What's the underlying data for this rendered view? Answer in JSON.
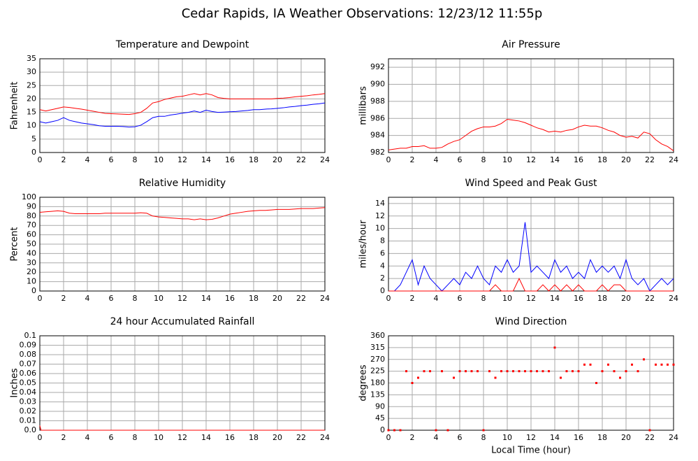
{
  "title": "Cedar Rapids, IA Weather Observations: 12/23/12 11:55p",
  "chart_data": [
    {
      "type": "line",
      "title": "Temperature and Dewpoint",
      "ylabel": "Fahrenheit",
      "xlim": [
        0,
        24
      ],
      "xticks": [
        0,
        2,
        4,
        6,
        8,
        10,
        12,
        14,
        16,
        18,
        20,
        22,
        24
      ],
      "ylim": [
        0,
        35
      ],
      "yticks": [
        0,
        5,
        10,
        15,
        20,
        25,
        30,
        35
      ],
      "grid": true,
      "x": [
        0,
        0.5,
        1,
        1.5,
        2,
        2.5,
        3,
        3.5,
        4,
        4.5,
        5,
        5.5,
        6,
        6.5,
        7,
        7.5,
        8,
        8.5,
        9,
        9.5,
        10,
        10.5,
        11,
        11.5,
        12,
        12.5,
        13,
        13.5,
        14,
        14.5,
        15,
        15.5,
        16,
        16.5,
        17,
        17.5,
        18,
        18.5,
        19,
        19.5,
        20,
        20.5,
        21,
        21.5,
        22,
        22.5,
        23,
        23.5,
        24
      ],
      "series": [
        {
          "color": "#ff0000",
          "values": [
            16,
            15.5,
            16,
            16.5,
            17,
            16.8,
            16.5,
            16.2,
            15.8,
            15.4,
            15,
            14.6,
            14.5,
            14.4,
            14.3,
            14.2,
            14.5,
            15,
            16.5,
            18.5,
            19,
            19.8,
            20.3,
            20.8,
            21,
            21.5,
            22,
            21.5,
            22,
            21.5,
            20.5,
            20.2,
            20,
            20,
            20,
            20,
            20,
            20,
            20,
            20,
            20.2,
            20.3,
            20.5,
            20.8,
            21,
            21.2,
            21.5,
            21.7,
            22
          ]
        },
        {
          "color": "#0000ff",
          "values": [
            11.5,
            11,
            11.5,
            12,
            13,
            12,
            11.5,
            11,
            10.7,
            10.4,
            10,
            9.8,
            9.8,
            9.8,
            9.7,
            9.5,
            9.6,
            10.2,
            11.5,
            13,
            13.5,
            13.5,
            14,
            14.3,
            14.7,
            15,
            15.5,
            15,
            15.8,
            15.3,
            15,
            15.1,
            15.2,
            15.3,
            15.5,
            15.7,
            16,
            16,
            16.2,
            16.3,
            16.5,
            16.7,
            17,
            17.2,
            17.5,
            17.7,
            18,
            18.2,
            18.5
          ]
        }
      ]
    },
    {
      "type": "line",
      "title": "Air Pressure",
      "ylabel": "millibars",
      "xlim": [
        0,
        24
      ],
      "xticks": [
        0,
        2,
        4,
        6,
        8,
        10,
        12,
        14,
        16,
        18,
        20,
        22,
        24
      ],
      "ylim": [
        982,
        993
      ],
      "yticks": [
        982,
        984,
        986,
        988,
        990,
        992
      ],
      "grid": true,
      "x": [
        0,
        0.5,
        1,
        1.5,
        2,
        2.5,
        3,
        3.5,
        4,
        4.5,
        5,
        5.5,
        6,
        6.5,
        7,
        7.5,
        8,
        8.5,
        9,
        9.5,
        10,
        10.5,
        11,
        11.5,
        12,
        12.5,
        13,
        13.5,
        14,
        14.5,
        15,
        15.5,
        16,
        16.5,
        17,
        17.5,
        18,
        18.5,
        19,
        19.5,
        20,
        20.5,
        21,
        21.5,
        22,
        22.5,
        23,
        23.5,
        24
      ],
      "series": [
        {
          "color": "#ff0000",
          "values": [
            982.3,
            982.4,
            982.5,
            982.5,
            982.7,
            982.7,
            982.8,
            982.5,
            982.5,
            982.6,
            983,
            983.3,
            983.5,
            984,
            984.5,
            984.8,
            985,
            985,
            985.1,
            985.4,
            985.9,
            985.8,
            985.7,
            985.5,
            985.2,
            984.9,
            984.7,
            984.4,
            984.5,
            984.4,
            984.6,
            984.7,
            985,
            985.2,
            985.1,
            985.1,
            984.9,
            984.6,
            984.4,
            984,
            983.8,
            983.9,
            983.7,
            984.4,
            984.2,
            983.5,
            983,
            982.7,
            982.2
          ]
        }
      ]
    },
    {
      "type": "line",
      "title": "Relative Humidity",
      "ylabel": "Percent",
      "xlim": [
        0,
        24
      ],
      "xticks": [
        0,
        2,
        4,
        6,
        8,
        10,
        12,
        14,
        16,
        18,
        20,
        22,
        24
      ],
      "ylim": [
        0,
        100
      ],
      "yticks": [
        0,
        10,
        20,
        30,
        40,
        50,
        60,
        70,
        80,
        90,
        100
      ],
      "grid": true,
      "x": [
        0,
        0.5,
        1,
        1.5,
        2,
        2.5,
        3,
        3.5,
        4,
        4.5,
        5,
        5.5,
        6,
        6.5,
        7,
        7.5,
        8,
        8.5,
        9,
        9.5,
        10,
        10.5,
        11,
        11.5,
        12,
        12.5,
        13,
        13.5,
        14,
        14.5,
        15,
        15.5,
        16,
        16.5,
        17,
        17.5,
        18,
        18.5,
        19,
        19.5,
        20,
        20.5,
        21,
        21.5,
        22,
        22.5,
        23,
        23.5,
        24
      ],
      "series": [
        {
          "color": "#ff0000",
          "values": [
            84,
            84.5,
            85,
            85.5,
            85,
            83,
            82.5,
            82.5,
            82.5,
            82.5,
            82.5,
            83,
            83,
            83,
            83,
            83,
            83,
            83.5,
            83,
            80,
            79,
            78.5,
            78,
            77.5,
            77,
            77,
            76,
            77,
            76,
            76.5,
            78,
            80,
            82,
            83,
            84,
            85,
            85.5,
            86,
            86,
            86.5,
            87,
            87,
            87,
            87.5,
            88,
            88,
            88,
            88.5,
            89
          ]
        }
      ]
    },
    {
      "type": "line",
      "title": "Wind Speed and Peak Gust",
      "ylabel": "miles/hour",
      "xlim": [
        0,
        24
      ],
      "xticks": [
        0,
        2,
        4,
        6,
        8,
        10,
        12,
        14,
        16,
        18,
        20,
        22,
        24
      ],
      "ylim": [
        0,
        15
      ],
      "yticks": [
        0,
        2,
        4,
        6,
        8,
        10,
        12,
        14
      ],
      "grid": true,
      "x": [
        0,
        0.5,
        1,
        1.5,
        2,
        2.5,
        3,
        3.5,
        4,
        4.5,
        5,
        5.5,
        6,
        6.5,
        7,
        7.5,
        8,
        8.5,
        9,
        9.5,
        10,
        10.5,
        11,
        11.5,
        12,
        12.5,
        13,
        13.5,
        14,
        14.5,
        15,
        15.5,
        16,
        16.5,
        17,
        17.5,
        18,
        18.5,
        19,
        19.5,
        20,
        20.5,
        21,
        21.5,
        22,
        22.5,
        23,
        23.5,
        24
      ],
      "series": [
        {
          "color": "#0000ff",
          "values": [
            0,
            0,
            1,
            3,
            5,
            1,
            4,
            2,
            1,
            0,
            1,
            2,
            1,
            3,
            2,
            4,
            2,
            1,
            4,
            3,
            5,
            3,
            4,
            11,
            3,
            4,
            3,
            2,
            5,
            3,
            4,
            2,
            3,
            2,
            5,
            3,
            4,
            3,
            4,
            2,
            5,
            2,
            1,
            2,
            0,
            1,
            2,
            1,
            2
          ]
        },
        {
          "color": "#ff0000",
          "values": [
            0,
            0,
            0,
            0,
            0,
            0,
            0,
            0,
            0,
            0,
            0,
            0,
            0,
            0,
            0,
            0,
            0,
            0,
            1,
            0,
            0,
            0,
            2,
            0,
            0,
            0,
            1,
            0,
            1,
            0,
            1,
            0,
            1,
            0,
            0,
            0,
            1,
            0,
            1,
            1,
            0,
            0,
            0,
            0,
            0,
            0,
            0,
            0,
            0
          ]
        }
      ]
    },
    {
      "type": "line",
      "title": "24 hour Accumulated Rainfall",
      "ylabel": "Inches",
      "xlim": [
        0,
        24
      ],
      "xticks": [
        0,
        2,
        4,
        6,
        8,
        10,
        12,
        14,
        16,
        18,
        20,
        22,
        24
      ],
      "ylim": [
        0,
        0.1
      ],
      "yticks": [
        {
          "value": 0,
          "label": "0.0"
        },
        0.01,
        0.02,
        0.03,
        0.04,
        0.05,
        0.06,
        0.07,
        0.08,
        0.09,
        0.1
      ],
      "grid": true,
      "x": [
        0,
        0.1,
        24
      ],
      "series": [
        {
          "color": "#ff0000",
          "values": [
            0.005,
            0,
            0
          ]
        }
      ]
    },
    {
      "type": "scatter",
      "title": "Wind Direction",
      "ylabel": "degrees",
      "xlabel": "Local Time (hour)",
      "xlim": [
        0,
        24
      ],
      "xticks": [
        0,
        2,
        4,
        6,
        8,
        10,
        12,
        14,
        16,
        18,
        20,
        22,
        24
      ],
      "ylim": [
        0,
        360
      ],
      "yticks": [
        0,
        45,
        90,
        135,
        180,
        225,
        270,
        315,
        360
      ],
      "grid": true,
      "x": [
        0,
        0.5,
        1,
        1.5,
        2,
        2.5,
        3,
        3.5,
        4,
        4.5,
        5,
        5.5,
        6,
        6.5,
        7,
        7.5,
        8,
        8.5,
        9,
        9.5,
        10,
        10.5,
        11,
        11.5,
        12,
        12.5,
        13,
        13.5,
        14,
        14.5,
        15,
        15.5,
        16,
        16.5,
        17,
        17.5,
        18,
        18.5,
        19,
        19.5,
        20,
        20.5,
        21,
        21.5,
        22,
        22.5,
        23,
        23.5,
        24
      ],
      "series": [
        {
          "color": "#ff0000",
          "values": [
            0,
            0,
            0,
            225,
            180,
            200,
            225,
            225,
            0,
            225,
            0,
            200,
            225,
            225,
            225,
            225,
            0,
            225,
            200,
            225,
            225,
            225,
            225,
            225,
            225,
            225,
            225,
            225,
            315,
            200,
            225,
            225,
            225,
            250,
            250,
            180,
            225,
            250,
            225,
            200,
            225,
            250,
            225,
            270,
            0,
            250,
            250,
            250,
            250
          ]
        }
      ]
    }
  ]
}
